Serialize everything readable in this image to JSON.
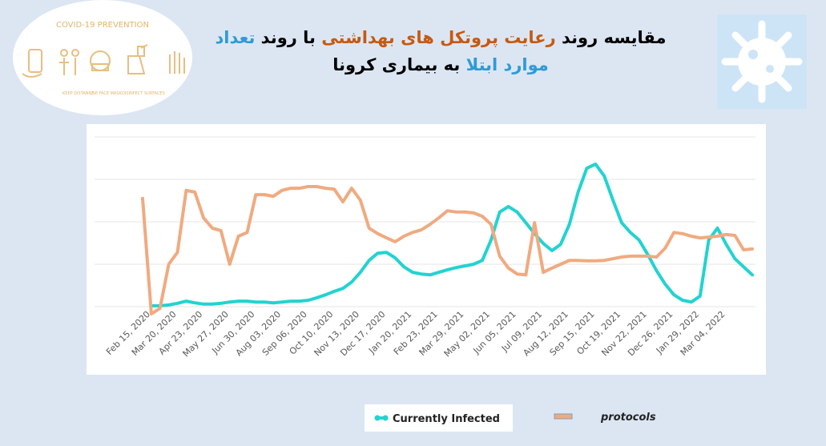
{
  "image": {
    "heading": "COVID-19 PREVENTION",
    "labels": [
      "KEEP DISTANCE",
      "USE FACE MASK",
      "DISINFECT SURFACES"
    ]
  },
  "chart_data": {
    "type": "line",
    "title_lines": [
      [
        {
          "text": "مقایسه روند ",
          "style": "c0"
        },
        {
          "text": "رعایت پروتکل های بهداشتی",
          "style": "c1"
        },
        {
          "text": " با روند ",
          "style": "c0"
        },
        {
          "text": "تعداد",
          "style": "c2"
        }
      ],
      [
        {
          "text": "موارد ابتلا",
          "style": "c2"
        },
        {
          "text": " به بیماری کرونا",
          "style": "c0"
        }
      ]
    ],
    "categories": [
      "Feb 15, 2020",
      null,
      null,
      "Mar 20, 2020",
      null,
      null,
      "Apr 23, 2020",
      null,
      null,
      "May 27, 2020",
      null,
      null,
      "Jun 30, 2020",
      null,
      null,
      "Aug 03, 2020",
      null,
      null,
      "Sep 06, 2020",
      null,
      null,
      "Oct 10, 2020",
      null,
      null,
      "Nov 13, 2020",
      null,
      null,
      "Dec 17, 2020",
      null,
      null,
      "Jan 20, 2021",
      null,
      null,
      "Feb 23, 2021",
      null,
      null,
      "Mar 29, 2021",
      null,
      null,
      "May 02, 2021",
      null,
      null,
      "Jun 05, 2021",
      null,
      null,
      "Jul 09, 2021",
      null,
      null,
      "Aug 12, 2021",
      null,
      null,
      "Sep 15, 2021",
      null,
      null,
      "Oct 19, 2021",
      null,
      null,
      "Nov 22, 2021",
      null,
      null,
      "Dec 26, 2021",
      null,
      null,
      "Jan 29, 2022",
      null,
      null,
      "Mar 04, 2022",
      null,
      null,
      null,
      null
    ],
    "series": [
      {
        "name": "Currently Infected",
        "color": "#22d3d0",
        "values": [
          null,
          0.02,
          0.02,
          0.04,
          0.08,
          0.13,
          0.09,
          0.06,
          0.06,
          0.08,
          0.11,
          0.13,
          0.13,
          0.11,
          0.11,
          0.09,
          0.11,
          0.13,
          0.13,
          0.15,
          0.21,
          0.28,
          0.36,
          0.43,
          0.58,
          0.81,
          1.09,
          1.26,
          1.28,
          1.15,
          0.94,
          0.81,
          0.77,
          0.75,
          0.81,
          0.87,
          0.92,
          0.96,
          1.0,
          1.09,
          1.57,
          2.23,
          2.36,
          2.23,
          1.98,
          1.72,
          1.49,
          1.32,
          1.47,
          1.94,
          2.7,
          3.26,
          3.36,
          3.08,
          2.51,
          1.98,
          1.75,
          1.57,
          1.23,
          0.85,
          0.53,
          0.28,
          0.15,
          0.11,
          0.25,
          1.57,
          1.85,
          1.47,
          1.13,
          0.94,
          0.75
        ]
      },
      {
        "name": "protocols",
        "color": "#f0aa80",
        "values": [
          2.55,
          -0.17,
          -0.04,
          1.0,
          1.28,
          2.74,
          2.7,
          2.09,
          1.85,
          1.79,
          1.0,
          1.66,
          1.75,
          2.64,
          2.64,
          2.6,
          2.74,
          2.79,
          2.79,
          2.83,
          2.83,
          2.79,
          2.77,
          2.47,
          2.79,
          2.51,
          1.85,
          1.72,
          1.62,
          1.53,
          1.66,
          1.75,
          1.81,
          1.94,
          2.09,
          2.26,
          2.23,
          2.23,
          2.21,
          2.13,
          1.94,
          1.19,
          0.91,
          0.77,
          0.75,
          1.98,
          0.81,
          0.91,
          1.0,
          1.09,
          1.09,
          1.08,
          1.08,
          1.09,
          1.13,
          1.17,
          1.19,
          1.19,
          1.19,
          1.17,
          1.38,
          1.75,
          1.72,
          1.66,
          1.62,
          1.64,
          1.66,
          1.7,
          1.68,
          1.34,
          1.36
        ]
      }
    ],
    "ylim": [
      -0.3,
      4.2
    ],
    "yticks": [
      0,
      1,
      2,
      3,
      4
    ],
    "grid": true
  }
}
